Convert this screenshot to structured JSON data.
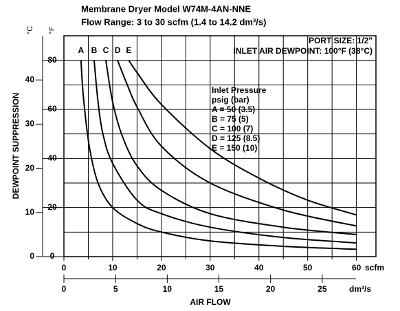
{
  "chart_data": {
    "type": "line",
    "title": "Membrane Dryer Model W74M-4AN-NNE",
    "subtitle": "Flow Range: 3 to 30 scfm (1.4 to 14.2 dm³/s)",
    "ylabel": "DEWPOINT SUPPRESSION",
    "y2unit": "°C",
    "yunit": "°F",
    "xlabel": "AIR FLOW",
    "xunit": "scfm",
    "x2unit": "dm³/s",
    "annotations": [
      "PORT SIZE: 1/2\"",
      "INLET AIR DEWPOINT: 100°F (38°C)"
    ],
    "legend_title": [
      "Inlet Pressure",
      "psig (bar)"
    ],
    "legend_lines": [
      "A = 50 (3.5)",
      "B = 75 (5)",
      "C = 100 (7)",
      "D = 125 (8.5)",
      "E = 150 (10)"
    ],
    "xlim": [
      0,
      64
    ],
    "xticks": [
      0,
      10,
      20,
      30,
      40,
      50,
      60
    ],
    "xminorticks": [
      5,
      15,
      25,
      35,
      45,
      55
    ],
    "x2lim": [
      0,
      30.2
    ],
    "x2ticks": [
      0,
      5,
      10,
      15,
      20,
      25
    ],
    "ylim": [
      0,
      90
    ],
    "yticks": [
      0,
      20,
      40,
      60,
      80
    ],
    "yminorticks": [
      10,
      30,
      50,
      70
    ],
    "y2lim": [
      0,
      50
    ],
    "y2ticks": [
      0,
      10,
      20,
      30,
      40
    ],
    "grid": true,
    "series": [
      {
        "name": "A",
        "color": "#000",
        "x": [
          3.5,
          4,
          5.2,
          7,
          10,
          15,
          20,
          30,
          45,
          60
        ],
        "values": [
          80,
          65,
          45,
          30,
          20,
          13.5,
          10,
          6.4,
          4.2,
          3
        ]
      },
      {
        "name": "B",
        "color": "#000",
        "x": [
          6.2,
          7,
          8,
          10,
          15,
          20,
          30,
          45,
          60
        ],
        "values": [
          80,
          63,
          50,
          38,
          23,
          17.5,
          12,
          7.8,
          5.6
        ]
      },
      {
        "name": "C",
        "color": "#000",
        "x": [
          8.6,
          10,
          12,
          15,
          20,
          30,
          45,
          60
        ],
        "values": [
          80,
          63,
          49,
          37,
          27,
          17.5,
          12,
          9
        ]
      },
      {
        "name": "D",
        "color": "#000",
        "x": [
          11,
          13,
          15,
          20,
          30,
          45,
          60
        ],
        "values": [
          80,
          70,
          61,
          45,
          30,
          19,
          12.5
        ]
      },
      {
        "name": "E",
        "color": "#000",
        "x": [
          13.3,
          15,
          20,
          30,
          40,
          50,
          60
        ],
        "values": [
          80,
          75,
          62,
          44,
          32,
          23,
          17
        ]
      }
    ]
  }
}
